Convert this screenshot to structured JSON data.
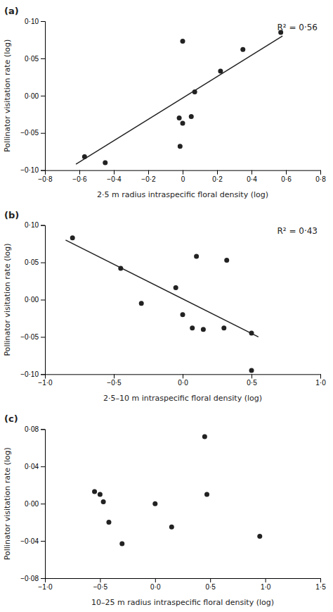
{
  "chart_data": [
    {
      "type": "scatter",
      "title": "(a)",
      "x_label": "2·5 m radius intraspecific floral density (log)",
      "y_label": "Pollinator visitation rate (log)",
      "annotations": [
        "R² = 0·56"
      ],
      "grid": false,
      "series": [
        {
          "type": "scatter",
          "marker": "circle",
          "color": "#222222",
          "x": [
            -0.57,
            -0.45,
            -0.02,
            -0.015,
            0.0,
            0.0,
            0.05,
            0.07,
            0.22,
            0.35,
            0.57
          ],
          "values": [
            -0.082,
            -0.09,
            -0.03,
            -0.068,
            0.073,
            -0.037,
            -0.028,
            0.005,
            0.033,
            0.062,
            0.085
          ]
        },
        {
          "type": "line",
          "line_style": "solid",
          "color": "#222222",
          "x": [
            -0.62,
            0.58
          ],
          "values": [
            -0.092,
            0.08
          ]
        }
      ],
      "xlim": [
        -0.8,
        0.8
      ],
      "ylim": [
        -0.1,
        0.1
      ],
      "xticks": [
        {
          "value": -0.8,
          "label": "−0·8"
        },
        {
          "value": -0.6,
          "label": "−0·6"
        },
        {
          "value": -0.4,
          "label": "−0·4"
        },
        {
          "value": -0.2,
          "label": "−0·2"
        },
        0,
        {
          "value": 0.2,
          "label": "0·2"
        },
        {
          "value": 0.4,
          "label": "0·4"
        },
        {
          "value": 0.6,
          "label": "0·6"
        },
        {
          "value": 0.8,
          "label": "0·8"
        }
      ],
      "yticks": [
        {
          "value": -0.1,
          "label": "−0·10"
        },
        {
          "value": -0.05,
          "label": "−0·05"
        },
        {
          "value": 0.0,
          "label": "0·00"
        },
        {
          "value": 0.05,
          "label": "0·05"
        },
        {
          "value": 0.1,
          "label": "0·10"
        }
      ]
    },
    {
      "type": "scatter",
      "title": "(b)",
      "x_label": "2·5–10 m intraspecific floral density (log)",
      "y_label": "Pollinator visitation rate (log)",
      "annotations": [
        "R² = 0·43"
      ],
      "grid": false,
      "series": [
        {
          "type": "scatter",
          "marker": "circle",
          "color": "#222222",
          "x": [
            -0.8,
            -0.45,
            -0.3,
            -0.05,
            0.0,
            0.07,
            0.1,
            0.15,
            0.3,
            0.32,
            0.5,
            0.5
          ],
          "values": [
            0.083,
            0.042,
            -0.005,
            0.016,
            -0.02,
            -0.038,
            0.058,
            -0.04,
            -0.038,
            0.053,
            -0.095,
            -0.045
          ]
        },
        {
          "type": "line",
          "line_style": "solid",
          "color": "#222222",
          "x": [
            -0.85,
            0.55
          ],
          "values": [
            0.08,
            -0.05
          ]
        }
      ],
      "xlim": [
        -1.0,
        1.0
      ],
      "ylim": [
        -0.1,
        0.1
      ],
      "xticks": [
        {
          "value": -1.0,
          "label": "−1·0"
        },
        {
          "value": -0.5,
          "label": "−0·5"
        },
        {
          "value": 0.0,
          "label": "0·0"
        },
        {
          "value": 0.5,
          "label": "0·5"
        },
        {
          "value": 1.0,
          "label": "1·0"
        }
      ],
      "yticks": [
        {
          "value": -0.1,
          "label": "−0·10"
        },
        {
          "value": -0.05,
          "label": "−0·05"
        },
        {
          "value": 0.0,
          "label": "0·00"
        },
        {
          "value": 0.05,
          "label": "0·05"
        },
        {
          "value": 0.1,
          "label": "0·10"
        }
      ]
    },
    {
      "type": "scatter",
      "title": "(c)",
      "x_label": "10–25 m radius intraspecific floral density (log)",
      "y_label": "Pollinator visitation rate (log)",
      "grid": false,
      "series": [
        {
          "type": "scatter",
          "marker": "circle",
          "color": "#222222",
          "x": [
            -0.55,
            -0.5,
            -0.47,
            -0.42,
            -0.3,
            0.0,
            0.15,
            0.45,
            0.47,
            0.95
          ],
          "values": [
            0.013,
            0.01,
            0.002,
            -0.02,
            -0.043,
            0.0,
            -0.025,
            0.072,
            0.01,
            -0.035
          ]
        }
      ],
      "xlim": [
        -1.0,
        1.5
      ],
      "ylim": [
        -0.08,
        0.08
      ],
      "xticks": [
        {
          "value": -1.0,
          "label": "−1·0"
        },
        {
          "value": -0.5,
          "label": "−0·5"
        },
        {
          "value": 0.0,
          "label": "0·0"
        },
        {
          "value": 0.5,
          "label": "0·5"
        },
        {
          "value": 1.0,
          "label": "1·0"
        },
        {
          "value": 1.5,
          "label": "1·5"
        }
      ],
      "yticks": [
        {
          "value": -0.08,
          "label": "−0·08"
        },
        {
          "value": -0.04,
          "label": "−0·04"
        },
        {
          "value": 0.0,
          "label": "0·00"
        },
        {
          "value": 0.04,
          "label": "0·04"
        },
        {
          "value": 0.08,
          "label": "0·08"
        }
      ]
    }
  ]
}
